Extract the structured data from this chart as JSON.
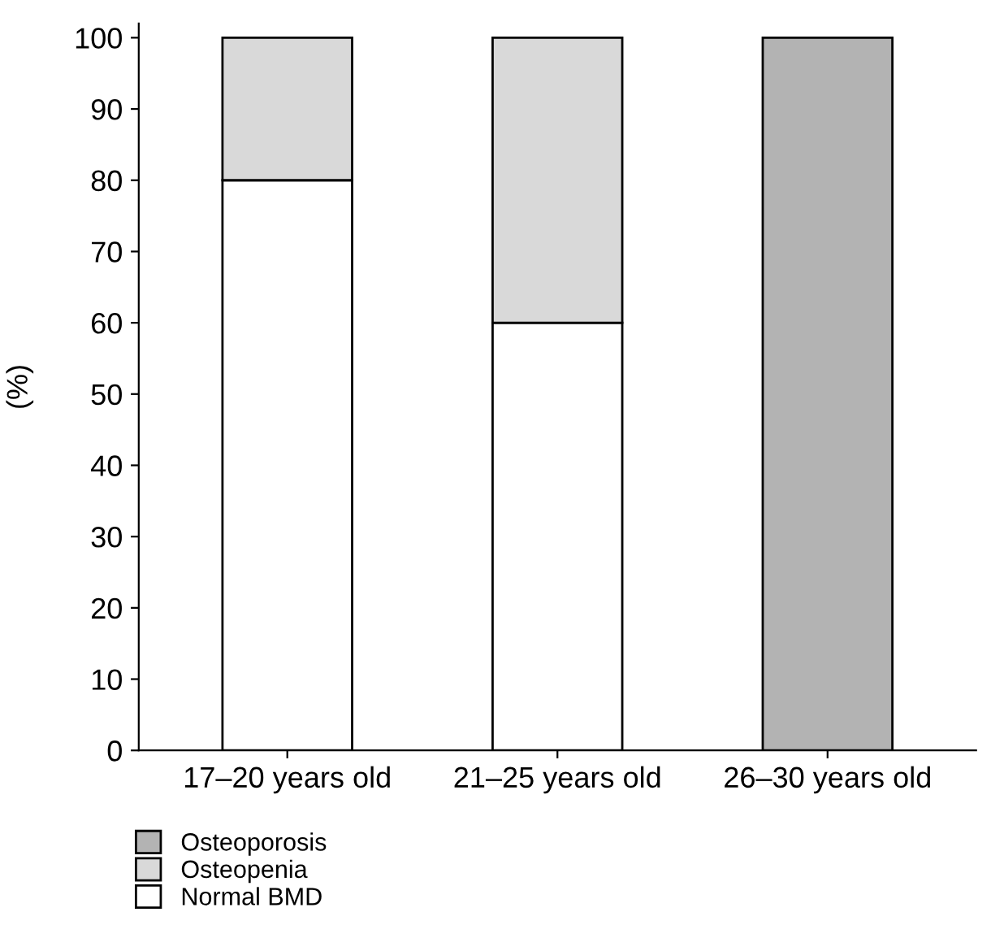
{
  "chart_data": {
    "type": "bar",
    "stacked": true,
    "ylabel": "(%)",
    "categories": [
      "17–20 years old",
      "21–25 years old",
      "26–30 years old"
    ],
    "series": [
      {
        "name": "Normal BMD",
        "color": "#ffffff",
        "values": [
          80,
          60,
          null
        ]
      },
      {
        "name": "Osteopenia",
        "color": "#d9d9d9",
        "values": [
          20,
          40,
          null
        ]
      },
      {
        "name": "Osteoporosis",
        "color": "#b3b3b3",
        "values": [
          null,
          null,
          100
        ]
      }
    ],
    "ylim": [
      0,
      102
    ],
    "yticks": [
      0,
      10,
      20,
      30,
      40,
      50,
      60,
      70,
      80,
      90,
      100
    ],
    "grid": false,
    "legend": "bottom left"
  }
}
